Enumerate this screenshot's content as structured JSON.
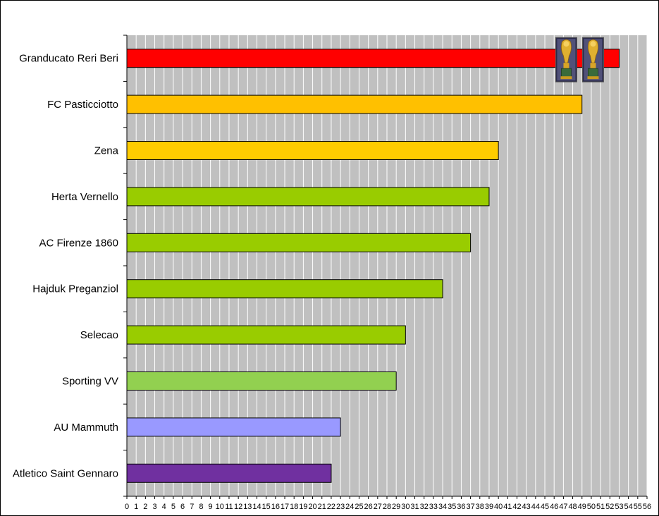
{
  "chart_data": {
    "type": "bar",
    "orientation": "horizontal",
    "categories": [
      "Granducato Reri Beri",
      "FC Pasticciotto",
      "Zena",
      "Herta Vernello",
      "AC Firenze 1860",
      "Hajduk Preganziol",
      "Selecao",
      "Sporting VV",
      "AU Mammuth",
      "Atletico Saint Gennaro"
    ],
    "values": [
      53,
      49,
      40,
      39,
      37,
      34,
      30,
      29,
      23,
      22
    ],
    "bar_colors": [
      "#ff0000",
      "#ffc000",
      "#ffcc00",
      "#99cc00",
      "#99cc00",
      "#99cc00",
      "#99cc00",
      "#92d050",
      "#9999ff",
      "#7030a0"
    ],
    "xlim": [
      0,
      56
    ],
    "x_ticks": [
      0,
      1,
      2,
      3,
      4,
      5,
      6,
      7,
      8,
      9,
      10,
      11,
      12,
      13,
      14,
      15,
      16,
      17,
      18,
      19,
      20,
      21,
      22,
      23,
      24,
      25,
      26,
      27,
      28,
      29,
      30,
      31,
      32,
      33,
      34,
      35,
      36,
      37,
      38,
      39,
      40,
      41,
      42,
      43,
      44,
      45,
      46,
      47,
      48,
      49,
      50,
      51,
      52,
      53,
      54,
      55,
      56
    ],
    "grid": true,
    "plot_background": "#c0c0c0",
    "title": "",
    "xlabel": "",
    "ylabel": "",
    "trophies": {
      "category": "Granducato Reri Beri",
      "count": 2,
      "icon": "trophy-icon"
    }
  }
}
